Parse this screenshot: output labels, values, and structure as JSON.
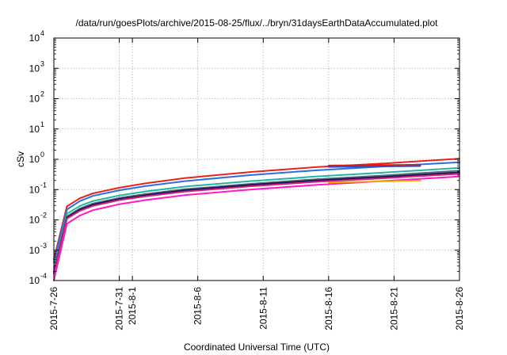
{
  "chart_data": {
    "type": "line",
    "title": "/data/run/goesPlots/archive/2015-08-25/flux/../bryn/31daysEarthDataAccumulated.plot",
    "xlabel": "Coordinated Universal Time (UTC)",
    "ylabel": "cSv",
    "yscale": "log",
    "ylim": [
      0.0001,
      10000
    ],
    "xlim": [
      "2015-07-26",
      "2015-08-26"
    ],
    "grid": true,
    "x_ticks": [
      {
        "date": "2015-07-26",
        "label": "2015-7-26"
      },
      {
        "date": "2015-07-31",
        "label": "2015-7-31"
      },
      {
        "date": "2015-08-01",
        "label": "2015-8-1"
      },
      {
        "date": "2015-08-06",
        "label": "2015-8-6"
      },
      {
        "date": "2015-08-11",
        "label": "2015-8-11"
      },
      {
        "date": "2015-08-16",
        "label": "2015-8-16"
      },
      {
        "date": "2015-08-21",
        "label": "2015-8-21"
      },
      {
        "date": "2015-08-26",
        "label": "2015-8-26"
      }
    ],
    "y_ticks": [
      {
        "value": 0.0001,
        "base": "10",
        "exp": "-4"
      },
      {
        "value": 0.001,
        "base": "10",
        "exp": "-3"
      },
      {
        "value": 0.01,
        "base": "10",
        "exp": "-2"
      },
      {
        "value": 0.1,
        "base": "10",
        "exp": "-1"
      },
      {
        "value": 1,
        "base": "10",
        "exp": "0"
      },
      {
        "value": 10,
        "base": "10",
        "exp": "1"
      },
      {
        "value": 100,
        "base": "10",
        "exp": "2"
      },
      {
        "value": 1000,
        "base": "10",
        "exp": "3"
      },
      {
        "value": 10000,
        "base": "10",
        "exp": "4"
      }
    ],
    "series": [
      {
        "color": "#e8231a",
        "x": [
          "2015-07-26",
          "2015-07-27",
          "2015-07-28",
          "2015-07-29",
          "2015-07-31",
          "2015-08-02",
          "2015-08-05",
          "2015-08-10",
          "2015-08-15",
          "2015-08-20",
          "2015-08-26"
        ],
        "y": [
          0.0005,
          0.028,
          0.052,
          0.075,
          0.115,
          0.16,
          0.24,
          0.38,
          0.55,
          0.72,
          1.05
        ]
      },
      {
        "color": "#2a6fe0",
        "x": [
          "2015-07-26",
          "2015-07-27",
          "2015-07-28",
          "2015-07-29",
          "2015-07-31",
          "2015-08-02",
          "2015-08-05",
          "2015-08-10",
          "2015-08-15",
          "2015-08-20",
          "2015-08-26"
        ],
        "y": [
          0.0004,
          0.022,
          0.042,
          0.062,
          0.095,
          0.13,
          0.19,
          0.3,
          0.43,
          0.57,
          0.8
        ]
      },
      {
        "color": "#20b5a0",
        "x": [
          "2015-07-26",
          "2015-07-27",
          "2015-07-28",
          "2015-07-29",
          "2015-07-31",
          "2015-08-02",
          "2015-08-05",
          "2015-08-10",
          "2015-08-15",
          "2015-08-20",
          "2015-08-26"
        ],
        "y": [
          0.00025,
          0.016,
          0.029,
          0.042,
          0.064,
          0.087,
          0.125,
          0.19,
          0.27,
          0.36,
          0.52
        ]
      },
      {
        "color": "#556b78",
        "x": [
          "2015-07-26",
          "2015-07-27",
          "2015-07-28",
          "2015-07-29",
          "2015-07-31",
          "2015-08-02",
          "2015-08-05",
          "2015-08-10",
          "2015-08-15",
          "2015-08-20",
          "2015-08-26"
        ],
        "y": [
          0.0002,
          0.013,
          0.024,
          0.035,
          0.053,
          0.071,
          0.103,
          0.155,
          0.22,
          0.29,
          0.42
        ]
      },
      {
        "color": "#20105a",
        "x": [
          "2015-07-26",
          "2015-07-27",
          "2015-07-28",
          "2015-07-29",
          "2015-07-31",
          "2015-08-02",
          "2015-08-05",
          "2015-08-10",
          "2015-08-15",
          "2015-08-20",
          "2015-08-26"
        ],
        "y": [
          0.00018,
          0.012,
          0.022,
          0.032,
          0.049,
          0.066,
          0.095,
          0.142,
          0.2,
          0.26,
          0.37
        ]
      },
      {
        "color": "#d0207a",
        "x": [
          "2015-07-26",
          "2015-07-27",
          "2015-07-28",
          "2015-07-29",
          "2015-07-31",
          "2015-08-02",
          "2015-08-05",
          "2015-08-10",
          "2015-08-15",
          "2015-08-20",
          "2015-08-26"
        ],
        "y": [
          0.00017,
          0.011,
          0.02,
          0.029,
          0.045,
          0.06,
          0.086,
          0.128,
          0.18,
          0.235,
          0.33
        ]
      },
      {
        "color": "#ff1ac8",
        "x": [
          "2015-07-26",
          "2015-07-27",
          "2015-07-28",
          "2015-07-29",
          "2015-07-31",
          "2015-08-02",
          "2015-08-05",
          "2015-08-10",
          "2015-08-15",
          "2015-08-20",
          "2015-08-26"
        ],
        "y": [
          0.0001,
          0.0075,
          0.014,
          0.021,
          0.033,
          0.045,
          0.066,
          0.1,
          0.142,
          0.19,
          0.27
        ]
      },
      {
        "color": "#f0a800",
        "x": [
          "2015-08-16",
          "2015-08-23"
        ],
        "y": [
          0.17,
          0.2
        ]
      },
      {
        "color": "#d81b1b",
        "x": [
          "2015-08-16",
          "2015-08-23"
        ],
        "y": [
          0.62,
          0.66
        ]
      },
      {
        "color": "#1d56c9",
        "x": [
          "2015-08-16",
          "2015-08-23"
        ],
        "y": [
          0.56,
          0.6
        ]
      }
    ]
  }
}
